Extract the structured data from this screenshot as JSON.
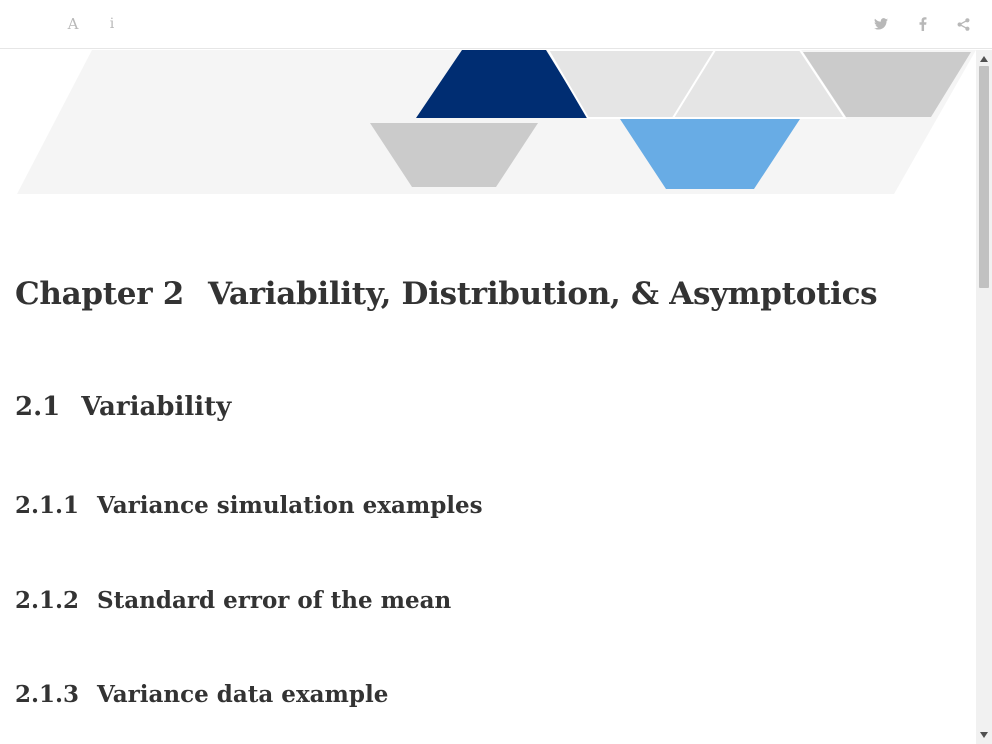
{
  "toolbar": {
    "left_buttons": [
      {
        "icon": "font-icon",
        "glyph": "A"
      },
      {
        "icon": "info-icon",
        "glyph": "i"
      }
    ],
    "right_buttons": [
      {
        "icon": "twitter-icon"
      },
      {
        "icon": "facebook-icon"
      },
      {
        "icon": "share-icon"
      }
    ],
    "icon_color": "#b8b8b8"
  },
  "banner": {
    "colors": {
      "navy": "#002d72",
      "sky": "#68ace5",
      "light_gray": "#e5e5e5",
      "mid_gray": "#cbcbcb",
      "backdrop": "#f5f5f5"
    }
  },
  "chapter": {
    "number": "Chapter 2",
    "title": "Variability, Distribution, & Asymptotics"
  },
  "section": {
    "number": "2.1",
    "title": "Variability"
  },
  "subsections": [
    {
      "number": "2.1.1",
      "title": "Variance simulation examples"
    },
    {
      "number": "2.1.2",
      "title": "Standard error of the mean"
    },
    {
      "number": "2.1.3",
      "title": "Variance data example"
    }
  ]
}
